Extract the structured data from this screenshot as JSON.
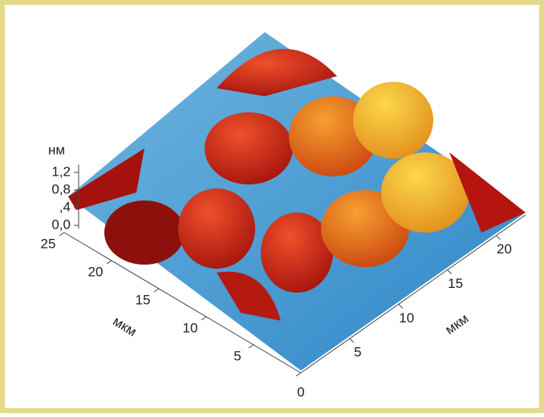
{
  "z_axis": {
    "label": "нм",
    "ticks": [
      "1,2",
      "0,8",
      ",4",
      "0,0"
    ]
  },
  "left_axis": {
    "label": "мкм",
    "ticks": [
      "25",
      "20",
      "15",
      "10",
      "5",
      "0"
    ]
  },
  "right_axis": {
    "label": "мкм",
    "ticks": [
      "5",
      "10",
      "15",
      "20"
    ]
  }
}
